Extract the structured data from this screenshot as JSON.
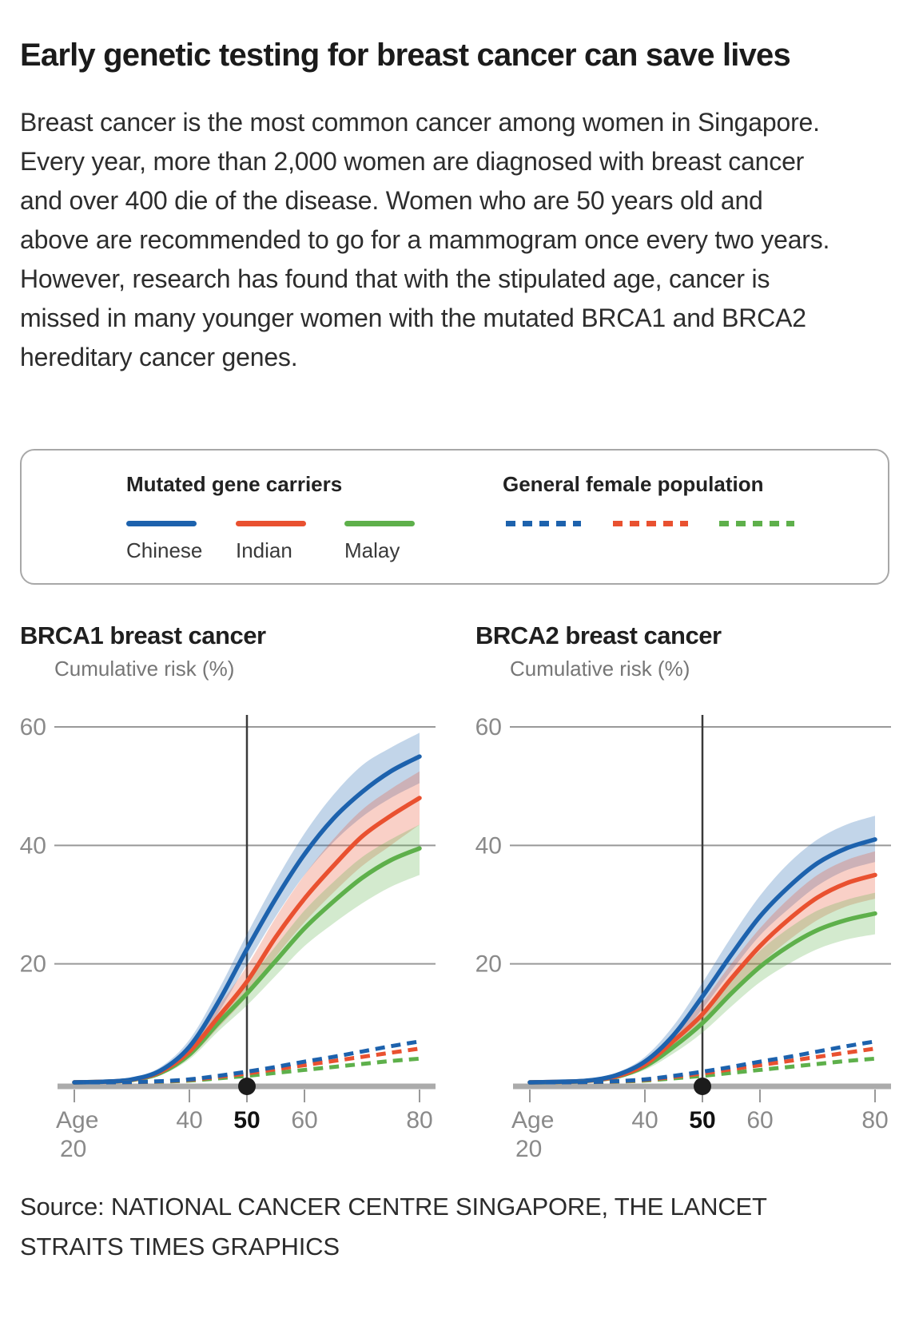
{
  "page": {
    "title": "Early genetic testing for breast cancer can save lives",
    "intro": "Breast cancer is the most common cancer among women in Singapore. Every year, more than 2,000 women are diagnosed with breast cancer and over 400 die of the disease. Women who are 50 years old and above are recommended to go for a mammogram once every two years. However, research has found that with the stipulated age, cancer is missed in many younger women with the mutated BRCA1 and BRCA2 hereditary cancer genes.",
    "source_line1": "Source: NATIONAL CANCER CENTRE SINGAPORE, THE LANCET",
    "source_line2": "STRAITS TIMES GRAPHICS"
  },
  "legend": {
    "carriers_title": "Mutated gene carriers",
    "general_title": "General female population",
    "labels": {
      "chinese": "Chinese",
      "indian": "Indian",
      "malay": "Malay"
    },
    "colors": {
      "chinese": "#1d62ad",
      "indian": "#e95130",
      "malay": "#5eb04b"
    }
  },
  "chart_data": [
    {
      "type": "line",
      "title": "BRCA1 breast cancer",
      "ylabel": "Cumulative risk (%)",
      "xlabel": "Age",
      "x_first_label": [
        "Age",
        "20"
      ],
      "highlight_age": 50,
      "ylim": [
        0,
        60
      ],
      "yticks": [
        60,
        40,
        20
      ],
      "xticks": [
        20,
        40,
        50,
        60,
        80
      ],
      "x": [
        20,
        25,
        30,
        35,
        40,
        45,
        50,
        55,
        60,
        65,
        70,
        75,
        80
      ],
      "series": [
        {
          "name": "Chinese mutated gene carriers",
          "style": "solid",
          "color": "#1d62ad",
          "values": [
            0,
            0.1,
            0.5,
            2,
            6,
            13.5,
            22.5,
            31,
            38.5,
            44.5,
            49,
            52.5,
            55
          ],
          "band_upper": [
            0,
            0.2,
            0.8,
            2.6,
            7.2,
            15.5,
            25,
            34,
            42,
            48.5,
            53.5,
            56.5,
            59
          ],
          "band_lower": [
            0,
            0.05,
            0.35,
            1.5,
            4.9,
            11.7,
            20,
            28,
            35,
            40.5,
            44.8,
            48,
            50.5
          ]
        },
        {
          "name": "Indian mutated gene carriers",
          "style": "solid",
          "color": "#e95130",
          "values": [
            0,
            0.1,
            0.45,
            1.8,
            5.2,
            11,
            17,
            24.5,
            31,
            36.5,
            41.5,
            45,
            48
          ],
          "band_upper": [
            0,
            0.15,
            0.6,
            2.2,
            6.2,
            12.8,
            19.6,
            27.8,
            35,
            41,
            46,
            49.5,
            52.5
          ],
          "band_lower": [
            0,
            0.05,
            0.3,
            1.4,
            4.2,
            9.2,
            14.5,
            21.2,
            27,
            32,
            36.5,
            40,
            43.5
          ]
        },
        {
          "name": "Malay mutated gene carriers",
          "style": "solid",
          "color": "#5eb04b",
          "values": [
            0,
            0.1,
            0.4,
            1.6,
            4.7,
            10,
            15,
            20.5,
            26,
            30.5,
            34.5,
            37.5,
            39.5
          ],
          "band_upper": [
            0,
            0.15,
            0.55,
            2,
            5.5,
            11.4,
            17,
            23,
            29,
            33.8,
            38,
            41,
            43.5
          ],
          "band_lower": [
            0,
            0.05,
            0.28,
            1.25,
            3.9,
            8.6,
            13,
            18,
            23,
            26.8,
            30.2,
            33,
            35
          ]
        },
        {
          "name": "Chinese general female population",
          "style": "dashed",
          "color": "#1d62ad",
          "values": [
            0,
            0,
            0.05,
            0.2,
            0.5,
            1.1,
            1.8,
            2.6,
            3.5,
            4.3,
            5.2,
            6.1,
            6.9
          ]
        },
        {
          "name": "Indian general female population",
          "style": "dashed",
          "color": "#e95130",
          "values": [
            0,
            0,
            0.04,
            0.16,
            0.42,
            0.92,
            1.5,
            2.2,
            2.9,
            3.6,
            4.3,
            5,
            5.7
          ]
        },
        {
          "name": "Malay general female population",
          "style": "dashed",
          "color": "#5eb04b",
          "values": [
            0,
            0,
            0.03,
            0.12,
            0.3,
            0.68,
            1.1,
            1.6,
            2.1,
            2.6,
            3.1,
            3.6,
            4
          ]
        }
      ]
    },
    {
      "type": "line",
      "title": "BRCA2 breast cancer",
      "ylabel": "Cumulative risk (%)",
      "xlabel": "Age",
      "x_first_label": [
        "Age",
        "20"
      ],
      "highlight_age": 50,
      "ylim": [
        0,
        60
      ],
      "yticks": [
        60,
        40,
        20
      ],
      "xticks": [
        20,
        40,
        50,
        60,
        80
      ],
      "x": [
        20,
        25,
        30,
        35,
        40,
        45,
        50,
        55,
        60,
        65,
        70,
        75,
        80
      ],
      "series": [
        {
          "name": "Chinese mutated gene carriers",
          "style": "solid",
          "color": "#1d62ad",
          "values": [
            0,
            0.1,
            0.3,
            1.2,
            3.5,
            8,
            14.5,
            21.5,
            28,
            33,
            37,
            39.5,
            41
          ],
          "band_upper": [
            0,
            0.15,
            0.45,
            1.6,
            4.3,
            9.6,
            16.8,
            24.5,
            31.5,
            37,
            41,
            43.5,
            45
          ],
          "band_lower": [
            0,
            0.05,
            0.2,
            0.9,
            2.8,
            6.6,
            12.4,
            18.8,
            24.8,
            29.3,
            33.2,
            35.8,
            37.2
          ]
        },
        {
          "name": "Indian mutated gene carriers",
          "style": "solid",
          "color": "#e95130",
          "values": [
            0,
            0.08,
            0.27,
            1,
            3,
            7,
            11.5,
            17.5,
            23,
            27.5,
            31.2,
            33.6,
            35
          ],
          "band_upper": [
            0,
            0.12,
            0.38,
            1.3,
            3.7,
            8.3,
            13.5,
            20,
            26,
            31,
            35,
            37.5,
            39
          ],
          "band_lower": [
            0,
            0.05,
            0.18,
            0.75,
            2.4,
            5.7,
            9.7,
            15,
            19.9,
            24,
            27.4,
            29.7,
            31
          ]
        },
        {
          "name": "Malay mutated gene carriers",
          "style": "solid",
          "color": "#5eb04b",
          "values": [
            0,
            0.07,
            0.25,
            0.9,
            2.7,
            6,
            10,
            15,
            19.5,
            23,
            25.7,
            27.4,
            28.5
          ],
          "band_upper": [
            0,
            0.1,
            0.35,
            1.15,
            3.3,
            7.2,
            11.8,
            17.3,
            22.2,
            26,
            29,
            30.8,
            32
          ],
          "band_lower": [
            0,
            0.04,
            0.16,
            0.68,
            2.1,
            4.9,
            8.4,
            12.8,
            16.9,
            20,
            22.5,
            24.1,
            25
          ]
        },
        {
          "name": "Chinese general female population",
          "style": "dashed",
          "color": "#1d62ad",
          "values": [
            0,
            0,
            0.05,
            0.2,
            0.5,
            1.1,
            1.8,
            2.6,
            3.5,
            4.3,
            5.2,
            6.1,
            6.9
          ]
        },
        {
          "name": "Indian general female population",
          "style": "dashed",
          "color": "#e95130",
          "values": [
            0,
            0,
            0.04,
            0.16,
            0.42,
            0.92,
            1.5,
            2.2,
            2.9,
            3.6,
            4.3,
            5,
            5.7
          ]
        },
        {
          "name": "Malay general female population",
          "style": "dashed",
          "color": "#5eb04b",
          "values": [
            0,
            0,
            0.03,
            0.12,
            0.3,
            0.68,
            1.1,
            1.6,
            2.1,
            2.6,
            3.1,
            3.6,
            4
          ]
        }
      ]
    }
  ]
}
